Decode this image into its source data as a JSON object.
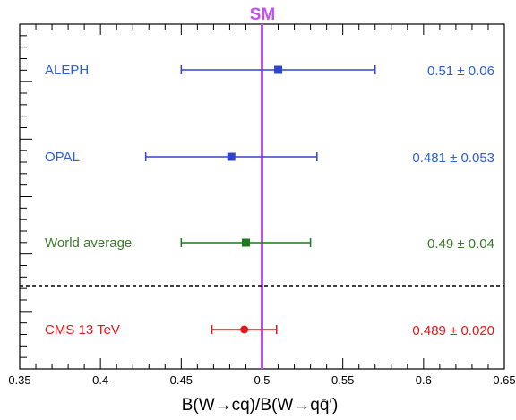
{
  "chart_data": {
    "type": "scatter",
    "variant": "horizontal-errorbar-comparison",
    "xlabel": "B(W→cq)/B(W→qq̄′)",
    "xlim": [
      0.35,
      0.65
    ],
    "x_ticks": [
      0.35,
      0.4,
      0.45,
      0.5,
      0.55,
      0.6,
      0.65
    ],
    "x_tick_labels": [
      "0.35",
      "0.4",
      "0.45",
      "0.5",
      "0.55",
      "0.6",
      "0.65"
    ],
    "reference_line": {
      "label": "SM",
      "value": 0.5,
      "color": "#c050f0"
    },
    "separator": "dashed line between World average and CMS 13 TeV",
    "entries": [
      {
        "label": "ALEPH",
        "value": 0.51,
        "error": 0.06,
        "value_text": "0.51 ± 0.06",
        "marker": "square",
        "color": "#3344cc",
        "text_color": "#2a5fd8"
      },
      {
        "label": "OPAL",
        "value": 0.481,
        "error": 0.053,
        "value_text": "0.481 ± 0.053",
        "marker": "square",
        "color": "#3344cc",
        "text_color": "#2a5fd8"
      },
      {
        "label": "World average",
        "value": 0.49,
        "error": 0.04,
        "value_text": "0.49 ± 0.04",
        "marker": "square",
        "color": "#1a7a1a",
        "text_color": "#3a7a2a"
      },
      {
        "label": "CMS 13 TeV",
        "value": 0.489,
        "error": 0.02,
        "value_text": "0.489 ± 0.020",
        "marker": "circle",
        "color": "#e01818",
        "text_color": "#e01818"
      }
    ],
    "grid": false,
    "legend": "none"
  }
}
